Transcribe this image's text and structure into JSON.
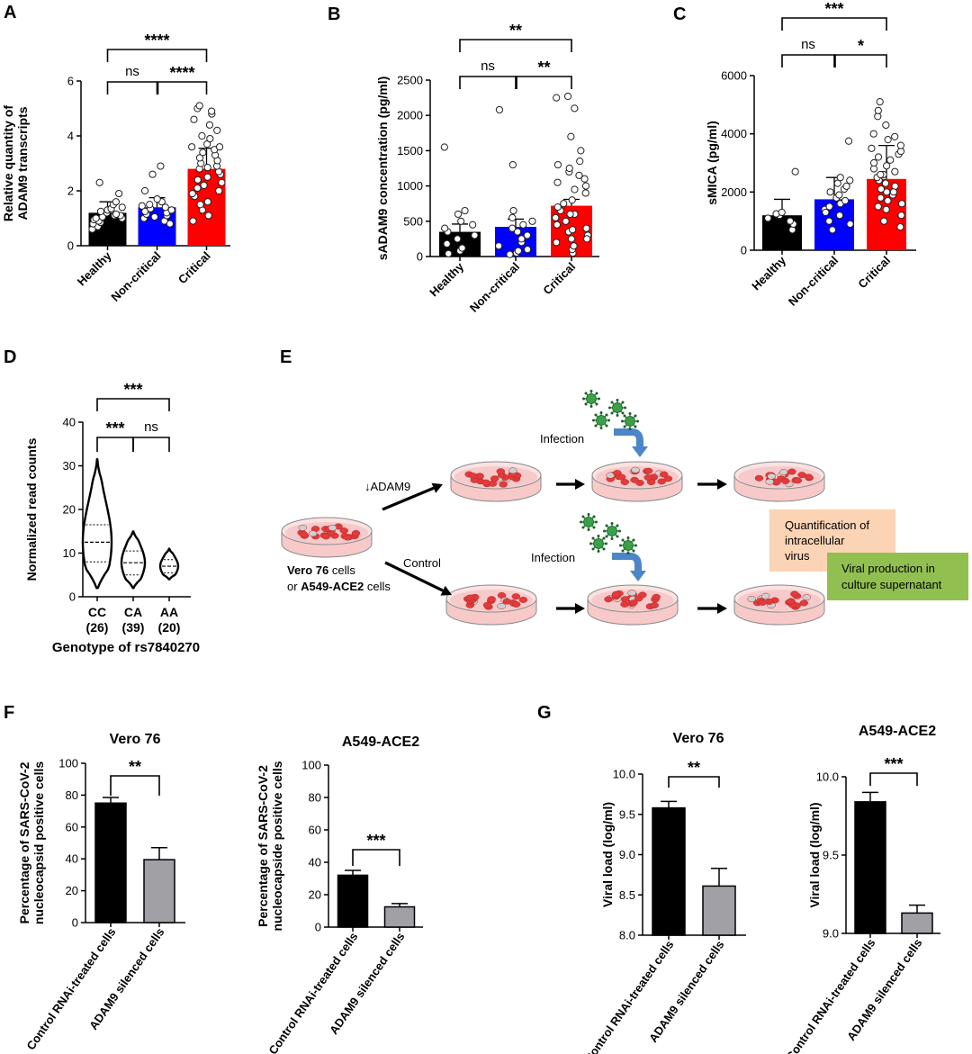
{
  "chart_data": [
    {
      "panel": "A",
      "type": "bar",
      "ylabel": [
        "Relative quantity of",
        "ADAM9 transcripts"
      ],
      "yticks": [
        0,
        2,
        4,
        6
      ],
      "ylim": [
        0,
        6
      ],
      "categories": [
        "Healthy",
        "Non-critical",
        "Critical"
      ],
      "values": [
        1.2,
        1.4,
        2.8
      ],
      "errors": [
        0.4,
        0.35,
        0.75
      ],
      "colors": [
        "#000000",
        "#0000ff",
        "#ff0000"
      ],
      "points": [
        [
          0.6,
          0.7,
          0.8,
          0.85,
          0.9,
          0.95,
          1.0,
          1.0,
          1.05,
          1.1,
          1.1,
          1.15,
          1.2,
          1.25,
          1.3,
          1.35,
          1.4,
          1.5,
          1.6,
          1.9,
          2.3
        ],
        [
          0.8,
          0.9,
          1.0,
          1.05,
          1.1,
          1.15,
          1.2,
          1.25,
          1.3,
          1.35,
          1.4,
          1.45,
          1.5,
          1.6,
          1.7,
          2.0,
          2.6,
          2.9
        ],
        [
          0.9,
          1.1,
          1.3,
          1.5,
          1.6,
          1.8,
          1.9,
          2.0,
          2.1,
          2.2,
          2.3,
          2.4,
          2.5,
          2.6,
          2.7,
          2.8,
          2.85,
          2.9,
          3.0,
          3.1,
          3.2,
          3.3,
          3.4,
          3.5,
          3.6,
          3.7,
          3.9,
          4.0,
          4.2,
          4.4,
          4.6,
          4.8,
          5.0,
          5.1,
          4.9,
          3.6
        ]
      ],
      "comparisons": [
        {
          "from": 0,
          "to": 1,
          "label": "ns"
        },
        {
          "from": 1,
          "to": 2,
          "label": "****"
        },
        {
          "from": 0,
          "to": 2,
          "label": "****"
        }
      ]
    },
    {
      "panel": "B",
      "type": "bar",
      "ylabel": [
        "sADAM9 concentration (pg/ml)"
      ],
      "yticks": [
        0,
        500,
        1000,
        1500,
        2000,
        2500
      ],
      "ylim": [
        0,
        2500
      ],
      "categories": [
        "Healthy",
        "Non-critical",
        "Critical"
      ],
      "values": [
        350,
        420,
        720
      ],
      "errors": [
        110,
        110,
        90
      ],
      "colors": [
        "#000000",
        "#0000ff",
        "#ff0000"
      ],
      "points": [
        [
          40,
          80,
          120,
          180,
          250,
          300,
          350,
          400,
          450,
          500,
          600,
          650,
          1550
        ],
        [
          30,
          50,
          80,
          100,
          150,
          200,
          250,
          300,
          350,
          400,
          450,
          500,
          550,
          650,
          1300,
          2080
        ],
        [
          50,
          100,
          150,
          200,
          250,
          300,
          350,
          400,
          450,
          500,
          550,
          600,
          650,
          700,
          750,
          800,
          900,
          950,
          1000,
          1050,
          1100,
          1150,
          1200,
          1250,
          1300,
          1350,
          1500,
          1700,
          2100,
          2250,
          2270,
          250,
          380,
          600
        ]
      ],
      "comparisons": [
        {
          "from": 0,
          "to": 1,
          "label": "ns"
        },
        {
          "from": 1,
          "to": 2,
          "label": "**"
        },
        {
          "from": 0,
          "to": 2,
          "label": "**"
        }
      ]
    },
    {
      "panel": "C",
      "type": "bar",
      "ylabel": [
        "sMICA (pg/ml)"
      ],
      "yticks": [
        0,
        2000,
        4000,
        6000
      ],
      "ylim": [
        0,
        6000
      ],
      "categories": [
        "Healthy",
        "Non-critical",
        "Critical"
      ],
      "values": [
        1200,
        1750,
        2450
      ],
      "errors": [
        550,
        750,
        1150
      ],
      "colors": [
        "#000000",
        "#0000ff",
        "#ff0000"
      ],
      "points": [
        [
          700,
          900,
          1000,
          1100,
          1200,
          1250,
          1300,
          2700
        ],
        [
          700,
          1000,
          1200,
          1400,
          1500,
          1600,
          1700,
          1800,
          1900,
          2000,
          2100,
          2200,
          2300,
          2400,
          2500,
          3750,
          1300,
          900
        ],
        [
          800,
          1000,
          1200,
          1400,
          1500,
          1700,
          1800,
          1900,
          2000,
          2100,
          2200,
          2300,
          2400,
          2500,
          2600,
          2700,
          2800,
          2900,
          3000,
          3100,
          3200,
          3300,
          3400,
          3500,
          3600,
          3800,
          4000,
          4300,
          4600,
          4800,
          5100,
          1600,
          2000,
          2600,
          3900
        ]
      ],
      "comparisons": [
        {
          "from": 0,
          "to": 1,
          "label": "ns"
        },
        {
          "from": 1,
          "to": 2,
          "label": "*"
        },
        {
          "from": 0,
          "to": 2,
          "label": "***"
        }
      ]
    },
    {
      "panel": "D",
      "type": "violin",
      "ylabel": [
        "Normalized read counts"
      ],
      "yticks": [
        0,
        10,
        20,
        30,
        40
      ],
      "ylim": [
        0,
        40
      ],
      "categories": [
        "CC",
        "CA",
        "AA"
      ],
      "counts": [
        "(26)",
        "(39)",
        "(20)"
      ],
      "xlabel": "Genotype of rs7840270",
      "ranges": [
        [
          2,
          31.5
        ],
        [
          2,
          15
        ],
        [
          4,
          11
        ]
      ],
      "medians": [
        12.5,
        7.8,
        7
      ],
      "quartiles": [
        [
          8,
          16.5
        ],
        [
          5,
          10.5
        ],
        [
          5.5,
          8.5
        ]
      ],
      "comparisons": [
        {
          "from": 0,
          "to": 1,
          "label": "***"
        },
        {
          "from": 1,
          "to": 2,
          "label": "ns"
        },
        {
          "from": 0,
          "to": 2,
          "label": "***"
        }
      ]
    },
    {
      "panel": "F",
      "type": "bar",
      "title": "Vero 76",
      "ylabel": [
        "Percentage of SARS-CoV-2",
        "nucleocapsid positive cells"
      ],
      "yticks": [
        0,
        20,
        40,
        60,
        80,
        100
      ],
      "ylim": [
        0,
        100
      ],
      "categories": [
        "Control RNAi-treated cells",
        "ADAM9 silenced cells"
      ],
      "values": [
        75,
        39.5
      ],
      "errors": [
        3.5,
        7.5
      ],
      "colors": [
        "#000000",
        "#a0a0a6"
      ],
      "comparisons": [
        {
          "from": 0,
          "to": 1,
          "label": "**"
        }
      ]
    },
    {
      "panel": "F2",
      "type": "bar",
      "title": "A549-ACE2",
      "ylabel": [
        "Percentage of SARS-CoV-2",
        "nucleocapside positive cells"
      ],
      "yticks": [
        0,
        20,
        40,
        60,
        80,
        100
      ],
      "ylim": [
        0,
        100
      ],
      "categories": [
        "Control RNAi-treated cells",
        "ADAM9 silenced cells"
      ],
      "values": [
        32,
        12.5
      ],
      "errors": [
        3,
        2
      ],
      "colors": [
        "#000000",
        "#a0a0a6"
      ],
      "comparisons": [
        {
          "from": 0,
          "to": 1,
          "label": "***"
        }
      ]
    },
    {
      "panel": "G",
      "type": "bar",
      "title": "Vero 76",
      "ylabel": [
        "Viral load (log/ml)"
      ],
      "yticks": [
        "8.0",
        "8.5",
        "9.0",
        "9.5",
        "10.0"
      ],
      "ylim": [
        8.0,
        10.0
      ],
      "categories": [
        "Control RNAi-treated cells",
        "ADAM9 silenced cells"
      ],
      "values": [
        9.58,
        8.61
      ],
      "errors": [
        0.08,
        0.22
      ],
      "colors": [
        "#000000",
        "#a0a0a6"
      ],
      "comparisons": [
        {
          "from": 0,
          "to": 1,
          "label": "**"
        }
      ]
    },
    {
      "panel": "G2",
      "type": "bar",
      "title": "A549-ACE2",
      "ylabel": [
        "Viral load (log/ml)"
      ],
      "yticks": [
        "9.0",
        "9.5",
        "10.0"
      ],
      "ylim": [
        9.0,
        10.0
      ],
      "categories": [
        "Control RNAi-treated cells",
        "ADAM9 silenced cells"
      ],
      "values": [
        9.84,
        9.13
      ],
      "errors": [
        0.06,
        0.05
      ],
      "colors": [
        "#000000",
        "#a0a0a6"
      ],
      "comparisons": [
        {
          "from": 0,
          "to": 1,
          "label": "***"
        }
      ]
    }
  ],
  "panel_labels": [
    "A",
    "B",
    "C",
    "D",
    "E",
    "F",
    "G"
  ],
  "diagram_e": {
    "knockdown_label": "↓ADAM9",
    "control_label": "Control",
    "infection_label": "Infection",
    "cells_line1_bold": "Vero 76",
    "cells_line1_rest": " cells",
    "cells_line2_prefix": "or ",
    "cells_line2_bold": "A549-ACE2",
    "cells_line2_rest": " cells",
    "box1_lines": [
      "Quantification of",
      "intracellular",
      "virus"
    ],
    "box2_lines": [
      "Viral production in",
      "culture supernatant"
    ],
    "box1_color": "#fbd3b5",
    "box2_color": "#92c050",
    "dish_color": "#f7c9c9",
    "cell_color": "#e23b3b",
    "virus_color": "#3aa04a",
    "arrow_color": "#4a86c8"
  }
}
